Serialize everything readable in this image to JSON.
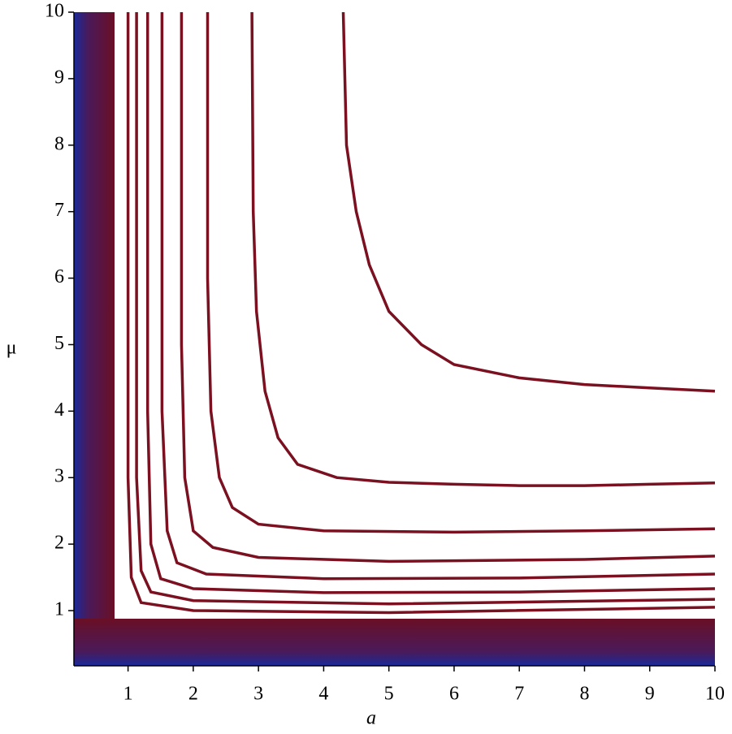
{
  "chart_data": {
    "type": "contour",
    "x_label": "a",
    "y_label": "μ",
    "xlim": [
      0.17,
      10
    ],
    "ylim": [
      0.17,
      10
    ],
    "xticks": [
      1,
      2,
      3,
      4,
      5,
      6,
      7,
      8,
      9,
      10
    ],
    "yticks": [
      1,
      2,
      3,
      4,
      5,
      6,
      7,
      8,
      9,
      10
    ],
    "series": [
      {
        "color": "#7a1020",
        "x": [
          4.3,
          4.35,
          4.5,
          4.7,
          5,
          5.5,
          6,
          7,
          8,
          9,
          10
        ],
        "values": [
          10,
          8,
          7,
          6.2,
          5.5,
          5,
          4.7,
          4.5,
          4.4,
          4.35,
          4.3
        ]
      },
      {
        "color": "#7a1020",
        "x": [
          2.9,
          2.92,
          2.97,
          3.1,
          3.3,
          3.6,
          4.2,
          5,
          6,
          7,
          8,
          9,
          10
        ],
        "values": [
          10,
          7,
          5.5,
          4.3,
          3.6,
          3.2,
          3.0,
          2.93,
          2.9,
          2.88,
          2.88,
          2.9,
          2.92
        ]
      },
      {
        "color": "#7a1020",
        "x": [
          2.22,
          2.22,
          2.27,
          2.4,
          2.6,
          3,
          4,
          6,
          8,
          10
        ],
        "values": [
          10,
          6,
          4,
          3.0,
          2.55,
          2.3,
          2.2,
          2.18,
          2.2,
          2.23
        ]
      },
      {
        "color": "#7a1020",
        "x": [
          1.82,
          1.82,
          1.87,
          2,
          2.3,
          3,
          5,
          8,
          10
        ],
        "values": [
          10,
          5,
          3,
          2.2,
          1.95,
          1.8,
          1.74,
          1.77,
          1.82
        ]
      },
      {
        "color": "#7a1020",
        "x": [
          1.52,
          1.52,
          1.6,
          1.75,
          2.2,
          4,
          7,
          10
        ],
        "values": [
          10,
          4,
          2.2,
          1.72,
          1.55,
          1.48,
          1.49,
          1.55
        ]
      },
      {
        "color": "#7a1020",
        "x": [
          1.3,
          1.3,
          1.35,
          1.5,
          2,
          4,
          7,
          10
        ],
        "values": [
          10,
          4,
          2,
          1.48,
          1.33,
          1.27,
          1.28,
          1.33
        ]
      },
      {
        "color": "#7a1020",
        "x": [
          1.13,
          1.13,
          1.2,
          1.35,
          2,
          5,
          10
        ],
        "values": [
          10,
          3,
          1.6,
          1.28,
          1.15,
          1.1,
          1.17
        ]
      },
      {
        "color": "#7a1020",
        "x": [
          1.0,
          1.0,
          1.05,
          1.2,
          2,
          5,
          10
        ],
        "values": [
          10,
          3,
          1.5,
          1.12,
          1.0,
          0.97,
          1.05
        ]
      }
    ]
  }
}
